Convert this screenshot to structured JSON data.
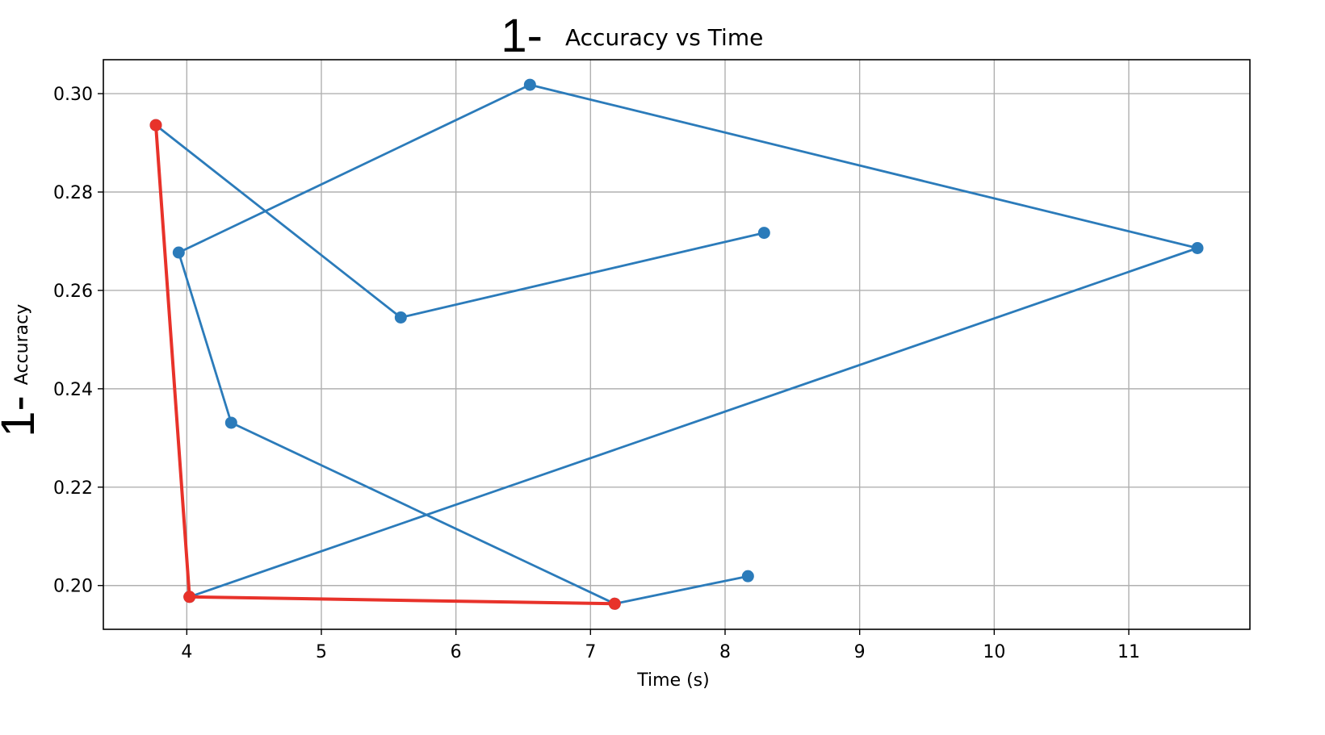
{
  "chart_data": {
    "type": "line",
    "title": "Accuracy vs Time",
    "title_prefix": "1-",
    "xlabel": "Time (s)",
    "ylabel": "Accuracy",
    "ylabel_prefix": "1-",
    "xlim": [
      3.38,
      11.9
    ],
    "ylim": [
      0.1911,
      0.3069
    ],
    "xticks": [
      4,
      5,
      6,
      7,
      8,
      9,
      10,
      11
    ],
    "xtick_labels": [
      "4",
      "5",
      "6",
      "7",
      "8",
      "9",
      "10",
      "11"
    ],
    "yticks": [
      0.2,
      0.22,
      0.24,
      0.26,
      0.28,
      0.3
    ],
    "ytick_labels": [
      "0.20",
      "0.22",
      "0.24",
      "0.26",
      "0.28",
      "0.30"
    ],
    "grid": true,
    "series": [
      {
        "color": "#2b7bba",
        "points": [
          {
            "x": 8.17,
            "y": 0.2019
          },
          {
            "x": 7.18,
            "y": 0.1963
          },
          {
            "x": 4.33,
            "y": 0.2331
          },
          {
            "x": 3.94,
            "y": 0.2677
          },
          {
            "x": 6.55,
            "y": 0.3018
          },
          {
            "x": 11.51,
            "y": 0.2686
          },
          {
            "x": 4.02,
            "y": 0.1977
          },
          {
            "x": 3.77,
            "y": 0.2936
          },
          {
            "x": 5.59,
            "y": 0.2545
          },
          {
            "x": 8.29,
            "y": 0.2717
          }
        ]
      },
      {
        "color": "#e8322a",
        "points": [
          {
            "x": 3.77,
            "y": 0.2936
          },
          {
            "x": 4.02,
            "y": 0.1977
          },
          {
            "x": 7.18,
            "y": 0.1963
          }
        ]
      }
    ]
  }
}
